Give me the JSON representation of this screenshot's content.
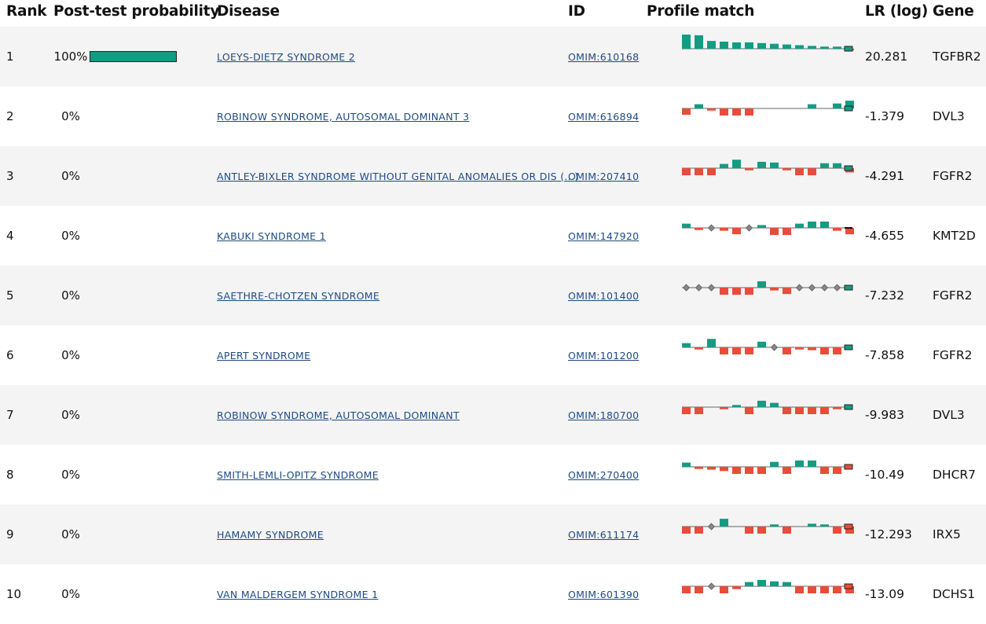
{
  "header": {
    "rank": "Rank",
    "probability": "Post-test probability",
    "disease": "Disease",
    "id": "ID",
    "profile": "Profile match",
    "lr": "LR (log)",
    "gene": "Gene"
  },
  "colors": {
    "positive": "#139c82",
    "negative": "#e84c3a",
    "neutral": "#888888",
    "link": "#1d4a83",
    "row_alt": "#f4f4f4"
  },
  "rows": [
    {
      "rank": "1",
      "probability": "100%",
      "probability_fraction": 1.0,
      "disease": "LOEYS-DIETZ SYNDROME 2",
      "id": "OMIM:610168",
      "lr": "20.281",
      "gene": "TGFBR2",
      "profile": [
        {
          "t": "p",
          "v": 1.0
        },
        {
          "t": "p",
          "v": 0.95
        },
        {
          "t": "p",
          "v": 0.55
        },
        {
          "t": "p",
          "v": 0.5
        },
        {
          "t": "p",
          "v": 0.45
        },
        {
          "t": "p",
          "v": 0.45
        },
        {
          "t": "p",
          "v": 0.4
        },
        {
          "t": "p",
          "v": 0.35
        },
        {
          "t": "p",
          "v": 0.3
        },
        {
          "t": "p",
          "v": 0.25
        },
        {
          "t": "p",
          "v": 0.2
        },
        {
          "t": "p",
          "v": 0.15
        },
        {
          "t": "p",
          "v": 0.15
        },
        {
          "t": "n",
          "v": 0.1
        },
        {
          "t": "n",
          "v": 0.45
        }
      ],
      "end": "p"
    },
    {
      "rank": "2",
      "probability": "0%",
      "probability_fraction": 0,
      "disease": "ROBINOW SYNDROME, AUTOSOMAL DOMINANT 3",
      "id": "OMIM:616894",
      "lr": "-1.379",
      "gene": "DVL3",
      "profile": [
        {
          "t": "n",
          "v": 0.45
        },
        {
          "t": "p",
          "v": 0.3
        },
        {
          "t": "n",
          "v": 0.15
        },
        {
          "t": "n",
          "v": 0.5
        },
        {
          "t": "n",
          "v": 0.5
        },
        {
          "t": "n",
          "v": 0.5
        },
        {
          "t": "e",
          "v": 0
        },
        {
          "t": "e",
          "v": 0
        },
        {
          "t": "e",
          "v": 0
        },
        {
          "t": "e",
          "v": 0
        },
        {
          "t": "p",
          "v": 0.3
        },
        {
          "t": "e",
          "v": 0
        },
        {
          "t": "p",
          "v": 0.35
        },
        {
          "t": "p",
          "v": 0.55
        },
        {
          "t": "n",
          "v": 0.3
        },
        {
          "t": "n",
          "v": 0.3
        }
      ],
      "end": "p"
    },
    {
      "rank": "3",
      "probability": "0%",
      "probability_fraction": 0,
      "disease": "ANTLEY-BIXLER SYNDROME WITHOUT GENITAL ANOMALIES OR DIS (...)",
      "id": "OMIM:207410",
      "lr": "-4.291",
      "gene": "FGFR2",
      "profile": [
        {
          "t": "n",
          "v": 0.5
        },
        {
          "t": "n",
          "v": 0.5
        },
        {
          "t": "n",
          "v": 0.5
        },
        {
          "t": "p",
          "v": 0.3
        },
        {
          "t": "p",
          "v": 0.6
        },
        {
          "t": "n",
          "v": 0.15
        },
        {
          "t": "p",
          "v": 0.45
        },
        {
          "t": "p",
          "v": 0.4
        },
        {
          "t": "n",
          "v": 0.15
        },
        {
          "t": "n",
          "v": 0.5
        },
        {
          "t": "n",
          "v": 0.5
        },
        {
          "t": "p",
          "v": 0.35
        },
        {
          "t": "p",
          "v": 0.35
        },
        {
          "t": "n",
          "v": 0.3
        },
        {
          "t": "n",
          "v": 0.45
        }
      ],
      "end": "p"
    },
    {
      "rank": "4",
      "probability": "0%",
      "probability_fraction": 0,
      "disease": "KABUKI SYNDROME 1",
      "id": "OMIM:147920",
      "lr": "-4.655",
      "gene": "KMT2D",
      "profile": [
        {
          "t": "p",
          "v": 0.3
        },
        {
          "t": "n",
          "v": 0.15
        },
        {
          "t": "d",
          "v": 0
        },
        {
          "t": "n",
          "v": 0.2
        },
        {
          "t": "n",
          "v": 0.45
        },
        {
          "t": "d",
          "v": 0
        },
        {
          "t": "p",
          "v": 0.2
        },
        {
          "t": "n",
          "v": 0.5
        },
        {
          "t": "n",
          "v": 0.5
        },
        {
          "t": "p",
          "v": 0.3
        },
        {
          "t": "p",
          "v": 0.45
        },
        {
          "t": "p",
          "v": 0.45
        },
        {
          "t": "n",
          "v": 0.2
        },
        {
          "t": "n",
          "v": 0.45
        }
      ],
      "end": "k"
    },
    {
      "rank": "5",
      "probability": "0%",
      "probability_fraction": 0,
      "disease": "SAETHRE-CHOTZEN SYNDROME",
      "id": "OMIM:101400",
      "lr": "-7.232",
      "gene": "FGFR2",
      "profile": [
        {
          "t": "d",
          "v": 0
        },
        {
          "t": "d",
          "v": 0
        },
        {
          "t": "d",
          "v": 0
        },
        {
          "t": "n",
          "v": 0.5
        },
        {
          "t": "n",
          "v": 0.5
        },
        {
          "t": "n",
          "v": 0.5
        },
        {
          "t": "p",
          "v": 0.45
        },
        {
          "t": "n",
          "v": 0.2
        },
        {
          "t": "n",
          "v": 0.45
        },
        {
          "t": "d",
          "v": 0
        },
        {
          "t": "d",
          "v": 0
        },
        {
          "t": "d",
          "v": 0
        },
        {
          "t": "d",
          "v": 0
        },
        {
          "t": "e",
          "v": 0
        }
      ],
      "end": "p"
    },
    {
      "rank": "6",
      "probability": "0%",
      "probability_fraction": 0,
      "disease": "APERT SYNDROME",
      "id": "OMIM:101200",
      "lr": "-7.858",
      "gene": "FGFR2",
      "profile": [
        {
          "t": "p",
          "v": 0.3
        },
        {
          "t": "n",
          "v": 0.15
        },
        {
          "t": "p",
          "v": 0.6
        },
        {
          "t": "n",
          "v": 0.5
        },
        {
          "t": "n",
          "v": 0.5
        },
        {
          "t": "n",
          "v": 0.5
        },
        {
          "t": "p",
          "v": 0.4
        },
        {
          "t": "d",
          "v": 0
        },
        {
          "t": "n",
          "v": 0.5
        },
        {
          "t": "n",
          "v": 0.15
        },
        {
          "t": "n",
          "v": 0.2
        },
        {
          "t": "n",
          "v": 0.5
        },
        {
          "t": "n",
          "v": 0.5
        }
      ],
      "end": "p"
    },
    {
      "rank": "7",
      "probability": "0%",
      "probability_fraction": 0,
      "disease": "ROBINOW SYNDROME, AUTOSOMAL DOMINANT",
      "id": "OMIM:180700",
      "lr": "-9.983",
      "gene": "DVL3",
      "profile": [
        {
          "t": "n",
          "v": 0.5
        },
        {
          "t": "n",
          "v": 0.5
        },
        {
          "t": "e",
          "v": 0
        },
        {
          "t": "n",
          "v": 0.15
        },
        {
          "t": "p",
          "v": 0.15
        },
        {
          "t": "n",
          "v": 0.5
        },
        {
          "t": "p",
          "v": 0.45
        },
        {
          "t": "p",
          "v": 0.3
        },
        {
          "t": "n",
          "v": 0.5
        },
        {
          "t": "n",
          "v": 0.5
        },
        {
          "t": "n",
          "v": 0.5
        },
        {
          "t": "n",
          "v": 0.5
        },
        {
          "t": "n",
          "v": 0.15
        }
      ],
      "end": "p"
    },
    {
      "rank": "8",
      "probability": "0%",
      "probability_fraction": 0,
      "disease": "SMITH-LEMLI-OPITZ SYNDROME",
      "id": "OMIM:270400",
      "lr": "-10.49",
      "gene": "DHCR7",
      "profile": [
        {
          "t": "p",
          "v": 0.3
        },
        {
          "t": "n",
          "v": 0.15
        },
        {
          "t": "n",
          "v": 0.2
        },
        {
          "t": "n",
          "v": 0.3
        },
        {
          "t": "n",
          "v": 0.5
        },
        {
          "t": "n",
          "v": 0.5
        },
        {
          "t": "n",
          "v": 0.5
        },
        {
          "t": "p",
          "v": 0.35
        },
        {
          "t": "n",
          "v": 0.5
        },
        {
          "t": "p",
          "v": 0.45
        },
        {
          "t": "p",
          "v": 0.45
        },
        {
          "t": "n",
          "v": 0.5
        },
        {
          "t": "n",
          "v": 0.5
        }
      ],
      "end": "n"
    },
    {
      "rank": "9",
      "probability": "0%",
      "probability_fraction": 0,
      "disease": "HAMAMY SYNDROME",
      "id": "OMIM:611174",
      "lr": "-12.293",
      "gene": "IRX5",
      "profile": [
        {
          "t": "n",
          "v": 0.5
        },
        {
          "t": "n",
          "v": 0.5
        },
        {
          "t": "d",
          "v": 0
        },
        {
          "t": "p",
          "v": 0.55
        },
        {
          "t": "e",
          "v": 0
        },
        {
          "t": "n",
          "v": 0.5
        },
        {
          "t": "n",
          "v": 0.5
        },
        {
          "t": "p",
          "v": 0.15
        },
        {
          "t": "n",
          "v": 0.5
        },
        {
          "t": "e",
          "v": 0
        },
        {
          "t": "p",
          "v": 0.2
        },
        {
          "t": "p",
          "v": 0.15
        },
        {
          "t": "n",
          "v": 0.5
        },
        {
          "t": "n",
          "v": 0.5
        }
      ],
      "end": "n"
    },
    {
      "rank": "10",
      "probability": "0%",
      "probability_fraction": 0,
      "disease": "VAN MALDERGEM SYNDROME 1",
      "id": "OMIM:601390",
      "lr": "-13.09",
      "gene": "DCHS1",
      "profile": [
        {
          "t": "n",
          "v": 0.5
        },
        {
          "t": "n",
          "v": 0.5
        },
        {
          "t": "d",
          "v": 0
        },
        {
          "t": "n",
          "v": 0.5
        },
        {
          "t": "n",
          "v": 0.2
        },
        {
          "t": "p",
          "v": 0.3
        },
        {
          "t": "p",
          "v": 0.45
        },
        {
          "t": "p",
          "v": 0.35
        },
        {
          "t": "p",
          "v": 0.3
        },
        {
          "t": "n",
          "v": 0.5
        },
        {
          "t": "n",
          "v": 0.5
        },
        {
          "t": "n",
          "v": 0.5
        },
        {
          "t": "n",
          "v": 0.5
        },
        {
          "t": "n",
          "v": 0.5
        }
      ],
      "end": "n"
    }
  ]
}
